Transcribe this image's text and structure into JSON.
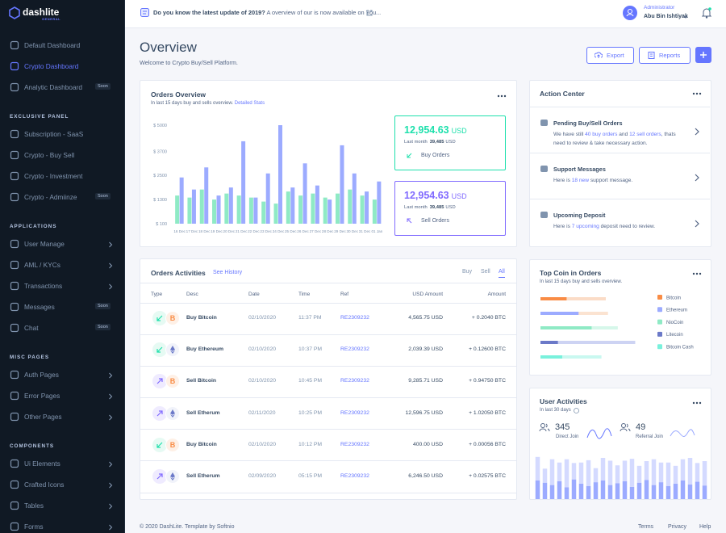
{
  "sidebar": {
    "logo": "dashlite",
    "logo_sub": "GENERAL",
    "sections": [
      {
        "items": [
          {
            "label": "Default Dashboard"
          },
          {
            "label": "Crypto Dashboard",
            "active": true
          },
          {
            "label": "Analytic Dashboard",
            "badge": "Soon"
          }
        ]
      },
      {
        "title": "EXCLUSIVE PANEL",
        "items": [
          {
            "label": "Subscription - SaaS"
          },
          {
            "label": "Crypto - Buy Sell"
          },
          {
            "label": "Crypto - Investment"
          },
          {
            "label": "Crypto - Admiinze",
            "badge": "Soon"
          }
        ]
      },
      {
        "title": "APPLICATIONS",
        "items": [
          {
            "label": "User Manage",
            "arrow": true
          },
          {
            "label": "AML / KYCs",
            "arrow": true
          },
          {
            "label": "Transactions",
            "arrow": true
          },
          {
            "label": "Messages",
            "badge": "Soon"
          },
          {
            "label": "Chat",
            "badge": "Soon"
          }
        ]
      },
      {
        "title": "MISC PAGES",
        "items": [
          {
            "label": "Auth Pages",
            "arrow": true
          },
          {
            "label": "Error Pages",
            "arrow": true
          },
          {
            "label": "Other Pages",
            "arrow": true
          }
        ]
      },
      {
        "title": "COMPONENTS",
        "items": [
          {
            "label": "Ui Elements",
            "arrow": true
          },
          {
            "label": "Crafted Icons",
            "arrow": true
          },
          {
            "label": "Tables",
            "arrow": true
          },
          {
            "label": "Forms",
            "arrow": true
          }
        ]
      }
    ]
  },
  "header": {
    "notice_bold": "Do you know the latest update of 2019?",
    "notice_text": "A overview of our is now available on You...",
    "role": "Administrator",
    "user": "Abu Bin Ishtiyak"
  },
  "page": {
    "title": "Overview",
    "subtitle": "Welcome to Crypto Buy/Sell Platform.",
    "buttons": [
      "Export",
      "Reports"
    ]
  },
  "orders_overview": {
    "title": "Orders Overview",
    "subtitle": "In last 15 days buy and sells overview.",
    "link": "Detailed Stats",
    "chart": {
      "type": "bar",
      "categories": [
        "16 Dec",
        "17 Dec",
        "18 Dec",
        "19 Dec",
        "20 Dec",
        "21 Dec",
        "22 Dec",
        "23 Dec",
        "24 Dec",
        "25 Dec",
        "26 Dec",
        "27 Dec",
        "28 Dec",
        "29 Dec",
        "30 Dec",
        "31 Dec",
        "01 Jan"
      ],
      "series": [
        {
          "color": "#8feac5",
          "values": [
            1500,
            1400,
            1800,
            1300,
            1600,
            1500,
            1400,
            1200,
            1100,
            1700,
            1500,
            1600,
            1400,
            1600,
            1800,
            1500,
            1300
          ]
        },
        {
          "color": "#9cabff",
          "values": [
            2400,
            1800,
            2900,
            1500,
            1900,
            4200,
            1400,
            2600,
            5000,
            1900,
            3100,
            2000,
            1300,
            4000,
            2600,
            1700,
            2200
          ]
        }
      ],
      "ylim": [
        100,
        5000
      ],
      "yticks": [
        {
          "value": 100,
          "label": "$ 100"
        },
        {
          "value": 1300,
          "label": "$ 1300"
        },
        {
          "value": 2500,
          "label": "$ 2500"
        },
        {
          "value": 3700,
          "label": "$ 3700"
        },
        {
          "value": 5000,
          "label": "$ 5000"
        }
      ]
    },
    "stats": [
      {
        "amount": "12,954.63",
        "unit": "USD",
        "last_label": "Last month",
        "last_value": "39,485",
        "last_unit": "USD",
        "label": "Buy Orders",
        "color": "#1ee0ac"
      },
      {
        "amount": "12,954.63",
        "unit": "USD",
        "last_label": "Last month",
        "last_value": "39,485",
        "last_unit": "USD",
        "label": "Sell Orders",
        "color": "#816bff"
      }
    ]
  },
  "action_center": {
    "title": "Action Center",
    "items": [
      {
        "title": "Pending Buy/Sell Orders",
        "text": [
          "We have still ",
          "40 buy orders",
          " and ",
          "12 sell orders",
          ", thats need to review & take necessary action."
        ]
      },
      {
        "title": "Support Messages",
        "text": [
          "Here is ",
          "18 new",
          " support message."
        ]
      },
      {
        "title": "Upcoming Deposit",
        "text": [
          "Here is ",
          "7 upcoming",
          " deposit need to review."
        ]
      }
    ]
  },
  "orders_activities": {
    "title": "Orders Activities",
    "link": "See History",
    "tabs": [
      "Buy",
      "Sell",
      "All"
    ],
    "active_tab": 2,
    "columns": [
      "Type",
      "Desc",
      "Date",
      "Time",
      "Ref",
      "USD Amount",
      "Amount"
    ],
    "rows": [
      {
        "side": "buy",
        "icon": "B",
        "cells": [
          "Buy Bitcoin",
          "02/10/2020",
          "11:37 PM",
          "RE2309232",
          "4,565.75 USD",
          "+ 0.2040 BTC"
        ]
      },
      {
        "side": "buy",
        "cells": [
          "Buy Ethereum",
          "02/10/2020",
          "10:37 PM",
          "RE2309232",
          "2,039.39 USD",
          "+ 0.12600 BTC"
        ]
      },
      {
        "side": "sell",
        "icon": "B",
        "cells": [
          "Sell Bitcoin",
          "02/10/2020",
          "10:45 PM",
          "RE2309232",
          "9,285.71 USD",
          "+ 0.94750 BTC"
        ]
      },
      {
        "side": "sell",
        "cells": [
          "Sell Etherum",
          "02/11/2020",
          "10:25 PM",
          "RE2309232",
          "12,596.75 USD",
          "+ 1.02050 BTC"
        ]
      },
      {
        "side": "buy",
        "icon": "B",
        "cells": [
          "Buy Bitcoin",
          "02/10/2020",
          "10:12 PM",
          "RE2309232",
          "400.00 USD",
          "+ 0.00056 BTC"
        ]
      },
      {
        "side": "sell",
        "cells": [
          "Sell Etherum",
          "02/09/2020",
          "05:15 PM",
          "RE2309232",
          "6,246.50 USD",
          "+ 0.02575 BTC"
        ]
      }
    ]
  },
  "top_coin": {
    "title": "Top Coin in Orders",
    "subtitle": "In last 15 days buy and sells overview.",
    "chart": {
      "type": "hbar",
      "xlim": [
        0,
        100
      ],
      "coins": [
        {
          "name": "Bitcoin",
          "color": "#f98c45",
          "light": "#fbdcc7",
          "values": [
            24,
            60
          ]
        },
        {
          "name": "Ethereum",
          "color": "#9cabff",
          "light": "#fbe3d1",
          "values": [
            35,
            62
          ]
        },
        {
          "name": "NioCoin",
          "color": "#8feac5",
          "light": "#d6f7ea",
          "values": [
            47,
            71
          ]
        },
        {
          "name": "Litecoin",
          "color": "#6b79c8",
          "light": "#cdd3f3",
          "values": [
            16,
            87
          ]
        },
        {
          "name": "Bitcoin Cash",
          "color": "#79f1dc",
          "light": "#c9f8f0",
          "values": [
            20,
            56
          ]
        }
      ]
    }
  },
  "user_activities": {
    "title": "User Activities",
    "subtitle": "In last 30 days",
    "stats": [
      {
        "value": "345",
        "label": "Direct Join"
      },
      {
        "value": "49",
        "label": "Referral Join"
      }
    ],
    "chart": {
      "type": "stacked-bar",
      "ylim": [
        0,
        100
      ],
      "series": [
        {
          "color": "#9cabff",
          "values": [
            40,
            35,
            30,
            38,
            25,
            42,
            33,
            28,
            36,
            40,
            30,
            34,
            38,
            26,
            35,
            41,
            30,
            36,
            28,
            33,
            40,
            31,
            37,
            29
          ]
        },
        {
          "color": "#d4daff",
          "values": [
            50,
            30,
            55,
            40,
            60,
            35,
            45,
            55,
            30,
            48,
            52,
            38,
            44,
            60,
            36,
            40,
            55,
            42,
            50,
            38,
            45,
            57,
            40,
            52
          ]
        }
      ]
    }
  },
  "footer": {
    "copyright": "© 2020 DashLite. Template by Softnio",
    "links": [
      "Terms",
      "Privacy",
      "Help"
    ]
  }
}
